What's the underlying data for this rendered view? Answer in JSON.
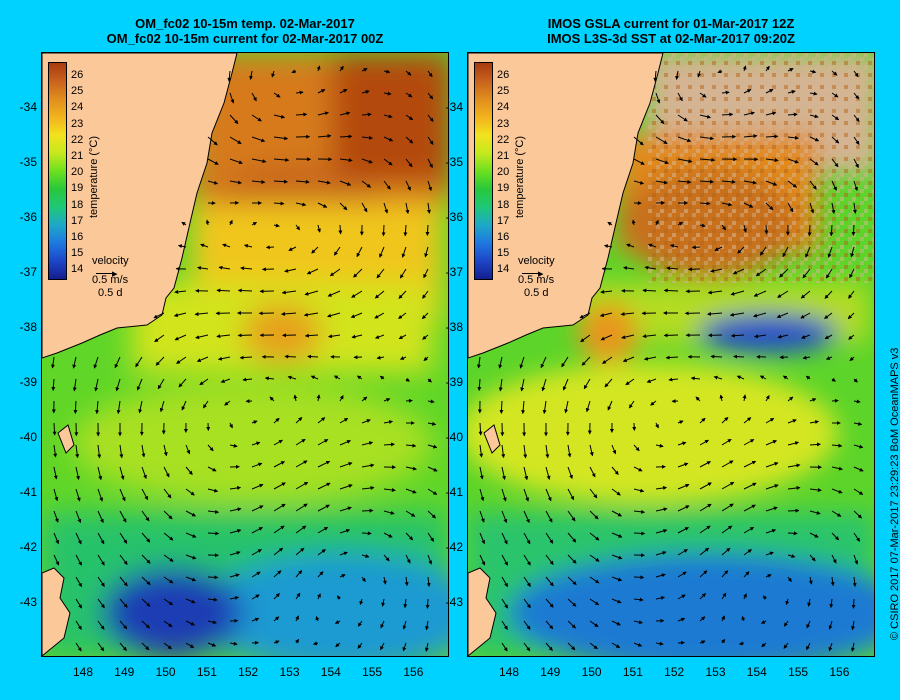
{
  "left_panel": {
    "title_line1": "OM_fc02 10-15m temp. 02-Mar-2017",
    "title_line2": "OM_fc02 10-15m current for 02-Mar-2017 00Z"
  },
  "right_panel": {
    "title_line1": "IMOS GSLA current for 01-Mar-2017 12Z",
    "title_line2": "IMOS L3S-3d SST at 02-Mar-2017 09:20Z"
  },
  "latitude_labels": [
    "-34",
    "-35",
    "-36",
    "-37",
    "-38",
    "-39",
    "-40",
    "-41",
    "-42",
    "-43"
  ],
  "longitude_labels": [
    "148",
    "149",
    "150",
    "151",
    "152",
    "153",
    "154",
    "155",
    "156"
  ],
  "colorbar": {
    "title": "temperature (°C)",
    "ticks": [
      "26",
      "25",
      "24",
      "23",
      "22",
      "21",
      "20",
      "19",
      "18",
      "17",
      "16",
      "15",
      "14"
    ],
    "colors": [
      "#a83a0e",
      "#c8621e",
      "#e08e1e",
      "#f2b21e",
      "#f2e21e",
      "#c6e81e",
      "#6ee01e",
      "#28c83a",
      "#1ec878",
      "#1ea8c8",
      "#1e78e0",
      "#1e46c8",
      "#141e8c"
    ]
  },
  "velocity_legend": {
    "label": "velocity",
    "speed": "0.5 m/s",
    "duration": "0.5 d"
  },
  "credit": "© CSIRO 2017  07-Mar-2017 23:29:23 BoM OceanMAPS v3",
  "colors": {
    "background": "#00d2ff",
    "land": "#fbc89a",
    "cloud_mask": "#d4b492"
  }
}
